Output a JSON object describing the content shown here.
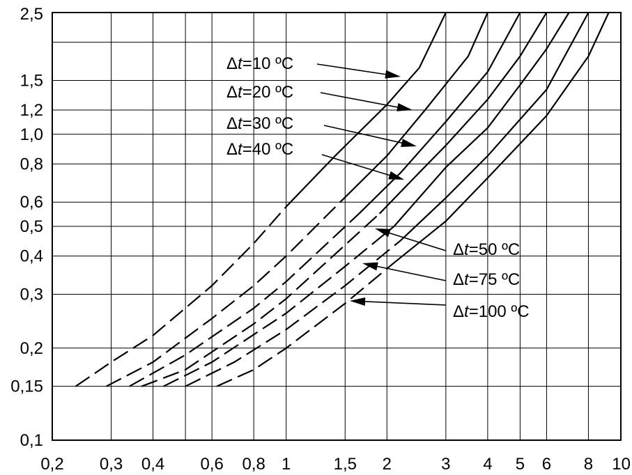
{
  "chart_data": {
    "type": "line",
    "title": "",
    "xlabel": "",
    "ylabel": "",
    "x_scale": "log",
    "y_scale": "log",
    "xlim": [
      0.2,
      10
    ],
    "ylim": [
      0.1,
      2.5
    ],
    "grid": true,
    "legend": "none",
    "x_ticks": [
      {
        "value": 0.2,
        "label": "0,2"
      },
      {
        "value": 0.3,
        "label": "0,3"
      },
      {
        "value": 0.4,
        "label": "0,4"
      },
      {
        "value": 0.6,
        "label": "0,6"
      },
      {
        "value": 0.8,
        "label": "0,8"
      },
      {
        "value": 1,
        "label": "1"
      },
      {
        "value": 1.5,
        "label": "1,5"
      },
      {
        "value": 2,
        "label": "2"
      },
      {
        "value": 3,
        "label": "3"
      },
      {
        "value": 4,
        "label": "4"
      },
      {
        "value": 5,
        "label": "5"
      },
      {
        "value": 6,
        "label": "6"
      },
      {
        "value": 8,
        "label": "8"
      },
      {
        "value": 10,
        "label": "10"
      }
    ],
    "x_grid_extra": [
      0.5
    ],
    "y_ticks": [
      {
        "value": 0.1,
        "label": "0,1"
      },
      {
        "value": 0.15,
        "label": "0,15"
      },
      {
        "value": 0.2,
        "label": "0,2"
      },
      {
        "value": 0.3,
        "label": "0,3"
      },
      {
        "value": 0.4,
        "label": "0,4"
      },
      {
        "value": 0.5,
        "label": "0,5"
      },
      {
        "value": 0.6,
        "label": "0,6"
      },
      {
        "value": 0.8,
        "label": "0,8"
      },
      {
        "value": 1.0,
        "label": "1,0"
      },
      {
        "value": 1.2,
        "label": "1,2"
      },
      {
        "value": 1.5,
        "label": "1,5"
      },
      {
        "value": 2.5,
        "label": "2,5"
      }
    ],
    "y_grid_extra": [
      2.0
    ],
    "series": [
      {
        "name": "Δt = 10 ºC",
        "delta": "Δ",
        "variable": "t",
        "equals": "=",
        "value": "10 ºC",
        "dashed_until_x": 1.0,
        "points": [
          [
            0.235,
            0.15
          ],
          [
            0.3,
            0.18
          ],
          [
            0.4,
            0.22
          ],
          [
            0.6,
            0.32
          ],
          [
            0.8,
            0.44
          ],
          [
            1.0,
            0.58
          ],
          [
            1.4,
            0.85
          ],
          [
            2.0,
            1.25
          ],
          [
            2.5,
            1.65
          ],
          [
            3.0,
            2.5
          ]
        ]
      },
      {
        "name": "Δt = 20 ºC",
        "delta": "Δ",
        "variable": "t",
        "equals": "=",
        "value": "20 ºC",
        "dashed_until_x": 1.45,
        "points": [
          [
            0.29,
            0.15
          ],
          [
            0.4,
            0.18
          ],
          [
            0.6,
            0.25
          ],
          [
            0.8,
            0.32
          ],
          [
            1.0,
            0.4
          ],
          [
            1.45,
            0.6
          ],
          [
            2.0,
            0.85
          ],
          [
            2.6,
            1.2
          ],
          [
            3.5,
            1.8
          ],
          [
            4.0,
            2.5
          ]
        ]
      },
      {
        "name": "Δt = 30 ºC",
        "delta": "Δ",
        "variable": "t",
        "equals": "=",
        "value": "30 ºC",
        "dashed_until_x": 1.65,
        "points": [
          [
            0.34,
            0.15
          ],
          [
            0.5,
            0.19
          ],
          [
            0.8,
            0.27
          ],
          [
            1.0,
            0.33
          ],
          [
            1.65,
            0.55
          ],
          [
            2.2,
            0.75
          ],
          [
            3.0,
            1.1
          ],
          [
            4.0,
            1.6
          ],
          [
            5.0,
            2.5
          ]
        ]
      },
      {
        "name": "Δt = 40 ºC",
        "delta": "Δ",
        "variable": "t",
        "equals": "=",
        "value": "40 ºC",
        "dashed_until_x": 1.9,
        "points": [
          [
            0.37,
            0.15
          ],
          [
            0.5,
            0.17
          ],
          [
            0.8,
            0.24
          ],
          [
            1.0,
            0.29
          ],
          [
            1.9,
            0.55
          ],
          [
            2.5,
            0.75
          ],
          [
            3.0,
            0.92
          ],
          [
            4.0,
            1.3
          ],
          [
            5.0,
            1.8
          ],
          [
            6.0,
            2.5
          ]
        ]
      },
      {
        "name": "Δt = 50 ºC",
        "delta": "Δ",
        "variable": "t",
        "equals": "=",
        "value": "50 ºC",
        "dashed_until_x": 2.1,
        "points": [
          [
            0.43,
            0.15
          ],
          [
            0.6,
            0.18
          ],
          [
            1.0,
            0.26
          ],
          [
            1.5,
            0.37
          ],
          [
            2.1,
            0.5
          ],
          [
            3.0,
            0.78
          ],
          [
            4.0,
            1.05
          ],
          [
            5.0,
            1.45
          ],
          [
            6.0,
            1.9
          ],
          [
            7.0,
            2.5
          ]
        ]
      },
      {
        "name": "Δt = 75 ºC",
        "delta": "Δ",
        "variable": "t",
        "equals": "=",
        "value": "75 ºC",
        "dashed_until_x": 2.2,
        "points": [
          [
            0.5,
            0.15
          ],
          [
            0.7,
            0.18
          ],
          [
            1.0,
            0.23
          ],
          [
            1.5,
            0.32
          ],
          [
            2.2,
            0.45
          ],
          [
            3.0,
            0.62
          ],
          [
            4.0,
            0.85
          ],
          [
            6.0,
            1.4
          ],
          [
            8.0,
            2.5
          ]
        ]
      },
      {
        "name": "Δt = 100 ºC",
        "delta": "Δ",
        "variable": "t",
        "equals": "=",
        "value": "100 ºC",
        "dashed_until_x": 2.1,
        "points": [
          [
            0.62,
            0.15
          ],
          [
            0.8,
            0.17
          ],
          [
            1.0,
            0.2
          ],
          [
            1.5,
            0.28
          ],
          [
            2.1,
            0.38
          ],
          [
            3.0,
            0.52
          ],
          [
            4.0,
            0.72
          ],
          [
            6.0,
            1.15
          ],
          [
            8.0,
            1.8
          ],
          [
            9.2,
            2.5
          ]
        ]
      }
    ]
  }
}
